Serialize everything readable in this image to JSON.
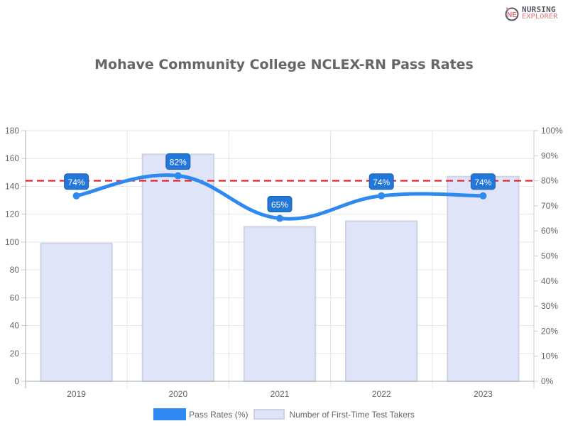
{
  "brand": {
    "line1": "NURSING",
    "line2": "EXPLORER",
    "mark_letters": "NE"
  },
  "chart_data": {
    "type": "bar+line",
    "title": "Mohave Community College NCLEX-RN Pass Rates",
    "categories": [
      "2019",
      "2020",
      "2021",
      "2022",
      "2023"
    ],
    "series": [
      {
        "name": "Pass Rates (%)",
        "type": "line",
        "axis": "right",
        "color": "#2e8af0",
        "values": [
          74,
          82,
          65,
          74,
          74
        ],
        "labels": [
          "74%",
          "82%",
          "65%",
          "74%",
          "74%"
        ]
      },
      {
        "name": "Number of First-Time Test Takers",
        "type": "bar",
        "axis": "left",
        "color": "#dfe4f8",
        "border": "#cdd3e6",
        "values": [
          99,
          163,
          111,
          115,
          147
        ]
      }
    ],
    "reference_line": {
      "value": 80,
      "axis": "right",
      "color": "#e8141c",
      "style": "dashed"
    },
    "left_axis": {
      "ylim": [
        0,
        180
      ],
      "ticks": [
        "0",
        "20",
        "40",
        "60",
        "80",
        "100",
        "120",
        "140",
        "160",
        "180"
      ]
    },
    "right_axis": {
      "ylim": [
        0,
        100
      ],
      "ticks": [
        "0%",
        "10%",
        "20%",
        "30%",
        "40%",
        "50%",
        "60%",
        "70%",
        "80%",
        "90%",
        "100%"
      ]
    },
    "xlabel": "",
    "ylabel": "",
    "grid": true,
    "legend_position": "bottom"
  },
  "legend": {
    "line_label": "Pass Rates (%)",
    "bar_label": "Number of First-Time Test Takers"
  }
}
